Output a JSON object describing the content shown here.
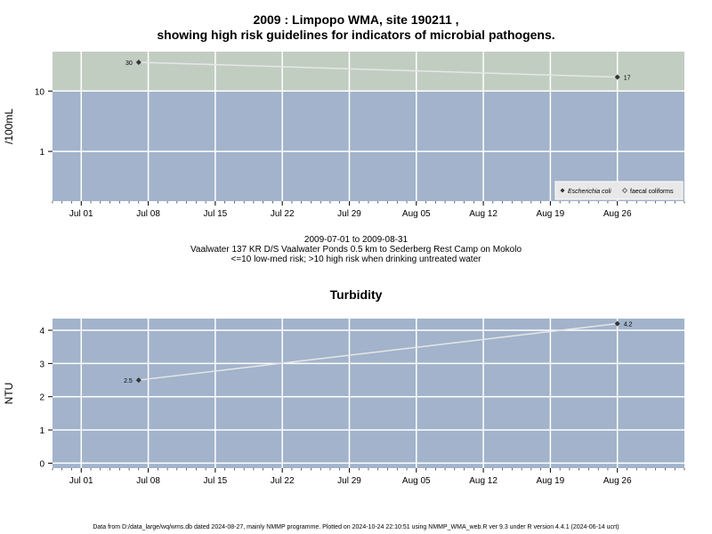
{
  "header": {
    "title_line1": "2009 : Limpopo WMA, site 190211 ,",
    "title_line2": "showing high risk guidelines for indicators of microbial pathogens."
  },
  "subtitle": {
    "line1": "2009-07-01 to 2009-08-31",
    "line2": "Vaalwater 137 KR D/S Vaalwater Ponds 0.5 km to Sederberg Rest Camp on Mokolo",
    "line3": "<=10 low-med risk; >10 high risk when drinking untreated water"
  },
  "footer": "Data from D:/data_large/wq/wms.db dated 2024-08-27, mainly NMMP programme. Plotted on 2024-10-24 22:10:51 using NMMP_WMA_web.R ver 9.3 under R version 4.4.1 (2024-06-14 ucrt)",
  "colors": {
    "panel_low": "#a2b3cb",
    "panel_high": "#c2cdc2",
    "grid": "#ffffff",
    "line": "#e6e6e6",
    "point": "#333333"
  },
  "chart_data": [
    {
      "type": "line",
      "title": "",
      "xlabel": "",
      "ylabel": "/100mL",
      "y_scale": "log",
      "ylim": [
        0.15,
        45
      ],
      "y_ticks": [
        1,
        10
      ],
      "y_tick_labels": [
        "1",
        "10"
      ],
      "x_range": [
        "2009-06-28",
        "2009-09-02"
      ],
      "x_ticks": [
        "2009-07-01",
        "2009-07-08",
        "2009-07-15",
        "2009-07-22",
        "2009-07-29",
        "2009-08-05",
        "2009-08-12",
        "2009-08-19",
        "2009-08-26"
      ],
      "x_tick_labels": [
        "Jul 01",
        "Jul 08",
        "Jul 15",
        "Jul 22",
        "Jul 29",
        "Aug 05",
        "Aug 12",
        "Aug 19",
        "Aug 26"
      ],
      "risk_threshold": 10,
      "series": [
        {
          "name": "Escherichia coli",
          "x": [
            "2009-07-07",
            "2009-08-26"
          ],
          "values": [
            30,
            17
          ],
          "point_labels": [
            "30",
            "17"
          ]
        }
      ],
      "legend": {
        "position": "bottom-right",
        "entries": [
          "Escherichia coli",
          "faecal coliforms"
        ]
      }
    },
    {
      "type": "line",
      "title": "Turbidity",
      "xlabel": "",
      "ylabel": "NTU",
      "y_scale": "linear",
      "ylim": [
        -0.15,
        4.35
      ],
      "y_ticks": [
        0,
        1,
        2,
        3,
        4
      ],
      "y_tick_labels": [
        "0",
        "1",
        "2",
        "3",
        "4"
      ],
      "x_range": [
        "2009-06-28",
        "2009-09-02"
      ],
      "x_ticks": [
        "2009-07-01",
        "2009-07-08",
        "2009-07-15",
        "2009-07-22",
        "2009-07-29",
        "2009-08-05",
        "2009-08-12",
        "2009-08-19",
        "2009-08-26"
      ],
      "x_tick_labels": [
        "Jul 01",
        "Jul 08",
        "Jul 15",
        "Jul 22",
        "Jul 29",
        "Aug 05",
        "Aug 12",
        "Aug 19",
        "Aug 26"
      ],
      "series": [
        {
          "x": [
            "2009-07-07",
            "2009-08-26"
          ],
          "values": [
            2.5,
            4.2
          ],
          "point_labels": [
            "2.5",
            "4.2"
          ]
        }
      ]
    }
  ]
}
